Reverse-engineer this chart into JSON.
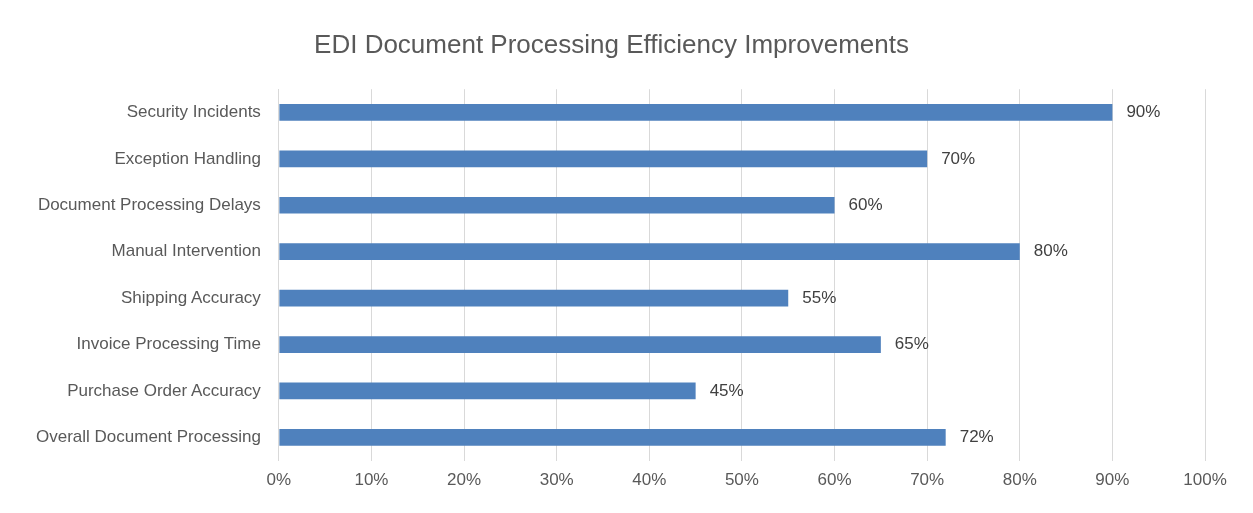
{
  "chart_data": {
    "type": "bar",
    "orientation": "horizontal",
    "title": "EDI Document Processing Efficiency Improvements",
    "categories": [
      "Security Incidents",
      "Exception Handling",
      "Document Processing Delays",
      "Manual Intervention",
      "Shipping Accuracy",
      "Invoice Processing Time",
      "Purchase Order Accuracy",
      "Overall Document Processing"
    ],
    "values": [
      90,
      70,
      60,
      80,
      55,
      65,
      45,
      72
    ],
    "value_labels": [
      "90%",
      "70%",
      "60%",
      "80%",
      "55%",
      "65%",
      "45%",
      "72%"
    ],
    "color": "#4f81bd",
    "xlim": [
      0,
      100
    ],
    "xticks": [
      {
        "value": 0,
        "label": "0%"
      },
      {
        "value": 10,
        "label": "10%"
      },
      {
        "value": 20,
        "label": "20%"
      },
      {
        "value": 30,
        "label": "30%"
      },
      {
        "value": 40,
        "label": "40%"
      },
      {
        "value": 50,
        "label": "50%"
      },
      {
        "value": 60,
        "label": "60%"
      },
      {
        "value": 70,
        "label": "70%"
      },
      {
        "value": 80,
        "label": "80%"
      },
      {
        "value": 90,
        "label": "90%"
      },
      {
        "value": 100,
        "label": "100%"
      }
    ],
    "grid": "x"
  }
}
